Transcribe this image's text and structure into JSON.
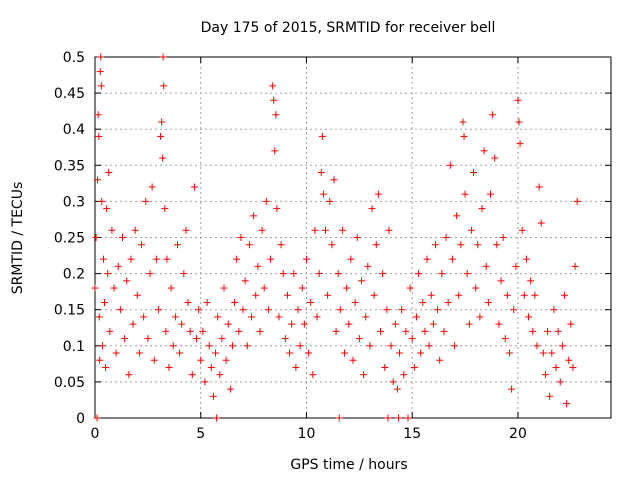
{
  "chart_data": {
    "type": "scatter",
    "title": "Day 175 of 2015, SRMTID for receiver bell",
    "xlabel": "GPS time / hours",
    "ylabel": "SRMTID / TECUs",
    "xlim": [
      0,
      24.4
    ],
    "ylim": [
      0,
      0.5
    ],
    "xticks": [
      0,
      5,
      10,
      15,
      20
    ],
    "xtick_labels": [
      "0",
      "5",
      "10",
      "15",
      "20"
    ],
    "yticks": [
      0,
      0.05,
      0.1,
      0.15,
      0.2,
      0.25,
      0.3,
      0.35,
      0.4,
      0.45,
      0.5
    ],
    "ytick_labels": [
      "0",
      "0.05",
      "0.1",
      "0.15",
      "0.2",
      "0.25",
      "0.3",
      "0.35",
      "0.4",
      "0.45",
      "0.5"
    ],
    "grid": true,
    "marker": "+",
    "color": "#ff0000",
    "series": [
      {
        "name": "SRMTID",
        "points": [
          [
            0.0,
            0.18
          ],
          [
            0.05,
            0.25
          ],
          [
            0.1,
            0.0
          ],
          [
            0.12,
            0.33
          ],
          [
            0.15,
            0.42
          ],
          [
            0.18,
            0.39
          ],
          [
            0.2,
            0.14
          ],
          [
            0.22,
            0.08
          ],
          [
            0.25,
            0.48
          ],
          [
            0.27,
            0.5
          ],
          [
            0.3,
            0.46
          ],
          [
            0.32,
            0.3
          ],
          [
            0.35,
            0.1
          ],
          [
            0.4,
            0.22
          ],
          [
            0.45,
            0.16
          ],
          [
            0.5,
            0.07
          ],
          [
            0.55,
            0.29
          ],
          [
            0.6,
            0.2
          ],
          [
            0.65,
            0.34
          ],
          [
            0.7,
            0.12
          ],
          [
            0.8,
            0.26
          ],
          [
            0.9,
            0.18
          ],
          [
            1.0,
            0.09
          ],
          [
            1.1,
            0.21
          ],
          [
            1.2,
            0.15
          ],
          [
            1.3,
            0.25
          ],
          [
            1.4,
            0.11
          ],
          [
            1.5,
            0.19
          ],
          [
            1.6,
            0.06
          ],
          [
            1.7,
            0.22
          ],
          [
            1.8,
            0.13
          ],
          [
            1.9,
            0.26
          ],
          [
            2.0,
            0.17
          ],
          [
            2.1,
            0.09
          ],
          [
            2.2,
            0.24
          ],
          [
            2.3,
            0.14
          ],
          [
            2.4,
            0.3
          ],
          [
            2.5,
            0.11
          ],
          [
            2.6,
            0.2
          ],
          [
            2.7,
            0.32
          ],
          [
            2.8,
            0.08
          ],
          [
            2.9,
            0.22
          ],
          [
            3.0,
            0.15
          ],
          [
            3.1,
            0.39
          ],
          [
            3.15,
            0.41
          ],
          [
            3.2,
            0.36
          ],
          [
            3.22,
            0.5
          ],
          [
            3.25,
            0.46
          ],
          [
            3.3,
            0.29
          ],
          [
            3.35,
            0.12
          ],
          [
            3.4,
            0.22
          ],
          [
            3.5,
            0.07
          ],
          [
            3.6,
            0.18
          ],
          [
            3.7,
            0.1
          ],
          [
            3.8,
            0.14
          ],
          [
            3.9,
            0.24
          ],
          [
            4.0,
            0.09
          ],
          [
            4.1,
            0.13
          ],
          [
            4.2,
            0.2
          ],
          [
            4.3,
            0.26
          ],
          [
            4.4,
            0.16
          ],
          [
            4.5,
            0.12
          ],
          [
            4.6,
            0.06
          ],
          [
            4.7,
            0.32
          ],
          [
            4.8,
            0.11
          ],
          [
            4.9,
            0.15
          ],
          [
            5.0,
            0.08
          ],
          [
            5.1,
            0.12
          ],
          [
            5.2,
            0.05
          ],
          [
            5.3,
            0.16
          ],
          [
            5.4,
            0.1
          ],
          [
            5.5,
            0.07
          ],
          [
            5.6,
            0.03
          ],
          [
            5.7,
            0.09
          ],
          [
            5.75,
            0.0
          ],
          [
            5.8,
            0.14
          ],
          [
            5.9,
            0.06
          ],
          [
            6.0,
            0.11
          ],
          [
            6.1,
            0.18
          ],
          [
            6.2,
            0.08
          ],
          [
            6.3,
            0.13
          ],
          [
            6.4,
            0.04
          ],
          [
            6.5,
            0.1
          ],
          [
            6.6,
            0.16
          ],
          [
            6.7,
            0.22
          ],
          [
            6.8,
            0.12
          ],
          [
            6.9,
            0.25
          ],
          [
            7.0,
            0.15
          ],
          [
            7.1,
            0.19
          ],
          [
            7.2,
            0.1
          ],
          [
            7.3,
            0.24
          ],
          [
            7.4,
            0.14
          ],
          [
            7.5,
            0.28
          ],
          [
            7.6,
            0.17
          ],
          [
            7.7,
            0.21
          ],
          [
            7.8,
            0.12
          ],
          [
            7.9,
            0.26
          ],
          [
            8.0,
            0.18
          ],
          [
            8.1,
            0.3
          ],
          [
            8.2,
            0.15
          ],
          [
            8.3,
            0.22
          ],
          [
            8.4,
            0.46
          ],
          [
            8.45,
            0.44
          ],
          [
            8.5,
            0.37
          ],
          [
            8.55,
            0.42
          ],
          [
            8.6,
            0.29
          ],
          [
            8.7,
            0.14
          ],
          [
            8.8,
            0.24
          ],
          [
            8.9,
            0.2
          ],
          [
            9.0,
            0.11
          ],
          [
            9.1,
            0.17
          ],
          [
            9.2,
            0.09
          ],
          [
            9.3,
            0.13
          ],
          [
            9.4,
            0.2
          ],
          [
            9.5,
            0.07
          ],
          [
            9.6,
            0.15
          ],
          [
            9.7,
            0.1
          ],
          [
            9.8,
            0.18
          ],
          [
            9.9,
            0.13
          ],
          [
            10.0,
            0.22
          ],
          [
            10.1,
            0.09
          ],
          [
            10.2,
            0.16
          ],
          [
            10.3,
            0.06
          ],
          [
            10.4,
            0.26
          ],
          [
            10.5,
            0.14
          ],
          [
            10.6,
            0.2
          ],
          [
            10.7,
            0.34
          ],
          [
            10.75,
            0.39
          ],
          [
            10.8,
            0.31
          ],
          [
            10.9,
            0.26
          ],
          [
            11.0,
            0.17
          ],
          [
            11.1,
            0.3
          ],
          [
            11.2,
            0.24
          ],
          [
            11.3,
            0.33
          ],
          [
            11.4,
            0.12
          ],
          [
            11.5,
            0.2
          ],
          [
            11.55,
            0.0
          ],
          [
            11.6,
            0.15
          ],
          [
            11.7,
            0.26
          ],
          [
            11.8,
            0.09
          ],
          [
            11.9,
            0.18
          ],
          [
            12.0,
            0.13
          ],
          [
            12.1,
            0.22
          ],
          [
            12.2,
            0.08
          ],
          [
            12.3,
            0.16
          ],
          [
            12.4,
            0.25
          ],
          [
            12.5,
            0.11
          ],
          [
            12.6,
            0.19
          ],
          [
            12.7,
            0.06
          ],
          [
            12.8,
            0.14
          ],
          [
            12.9,
            0.21
          ],
          [
            13.0,
            0.1
          ],
          [
            13.1,
            0.29
          ],
          [
            13.2,
            0.17
          ],
          [
            13.3,
            0.24
          ],
          [
            13.4,
            0.31
          ],
          [
            13.5,
            0.12
          ],
          [
            13.6,
            0.2
          ],
          [
            13.7,
            0.07
          ],
          [
            13.8,
            0.15
          ],
          [
            13.85,
            0.0
          ],
          [
            13.9,
            0.26
          ],
          [
            14.0,
            0.1
          ],
          [
            14.1,
            0.05
          ],
          [
            14.2,
            0.13
          ],
          [
            14.3,
            0.04
          ],
          [
            14.35,
            0.0
          ],
          [
            14.4,
            0.09
          ],
          [
            14.5,
            0.15
          ],
          [
            14.6,
            0.06
          ],
          [
            14.7,
            0.12
          ],
          [
            14.8,
            0.0
          ],
          [
            14.9,
            0.18
          ],
          [
            15.0,
            0.11
          ],
          [
            15.1,
            0.07
          ],
          [
            15.2,
            0.14
          ],
          [
            15.3,
            0.2
          ],
          [
            15.4,
            0.09
          ],
          [
            15.5,
            0.16
          ],
          [
            15.6,
            0.12
          ],
          [
            15.7,
            0.22
          ],
          [
            15.8,
            0.1
          ],
          [
            15.9,
            0.17
          ],
          [
            16.0,
            0.13
          ],
          [
            16.1,
            0.24
          ],
          [
            16.2,
            0.15
          ],
          [
            16.3,
            0.08
          ],
          [
            16.4,
            0.2
          ],
          [
            16.5,
            0.12
          ],
          [
            16.6,
            0.25
          ],
          [
            16.7,
            0.16
          ],
          [
            16.8,
            0.35
          ],
          [
            16.9,
            0.22
          ],
          [
            17.0,
            0.1
          ],
          [
            17.1,
            0.28
          ],
          [
            17.2,
            0.17
          ],
          [
            17.3,
            0.24
          ],
          [
            17.4,
            0.41
          ],
          [
            17.45,
            0.39
          ],
          [
            17.5,
            0.31
          ],
          [
            17.6,
            0.2
          ],
          [
            17.7,
            0.13
          ],
          [
            17.8,
            0.26
          ],
          [
            17.9,
            0.34
          ],
          [
            18.0,
            0.18
          ],
          [
            18.1,
            0.24
          ],
          [
            18.2,
            0.14
          ],
          [
            18.3,
            0.29
          ],
          [
            18.4,
            0.37
          ],
          [
            18.5,
            0.21
          ],
          [
            18.6,
            0.16
          ],
          [
            18.7,
            0.31
          ],
          [
            18.8,
            0.42
          ],
          [
            18.9,
            0.36
          ],
          [
            19.0,
            0.24
          ],
          [
            19.1,
            0.13
          ],
          [
            19.2,
            0.19
          ],
          [
            19.3,
            0.25
          ],
          [
            19.4,
            0.11
          ],
          [
            19.5,
            0.17
          ],
          [
            19.6,
            0.09
          ],
          [
            19.7,
            0.04
          ],
          [
            19.8,
            0.15
          ],
          [
            19.9,
            0.21
          ],
          [
            20.0,
            0.44
          ],
          [
            20.05,
            0.41
          ],
          [
            20.1,
            0.38
          ],
          [
            20.2,
            0.26
          ],
          [
            20.3,
            0.17
          ],
          [
            20.4,
            0.22
          ],
          [
            20.5,
            0.14
          ],
          [
            20.6,
            0.19
          ],
          [
            20.7,
            0.12
          ],
          [
            20.8,
            0.17
          ],
          [
            20.9,
            0.1
          ],
          [
            21.0,
            0.32
          ],
          [
            21.1,
            0.27
          ],
          [
            21.2,
            0.09
          ],
          [
            21.3,
            0.06
          ],
          [
            21.4,
            0.12
          ],
          [
            21.5,
            0.03
          ],
          [
            21.6,
            0.09
          ],
          [
            21.7,
            0.15
          ],
          [
            21.8,
            0.07
          ],
          [
            21.9,
            0.12
          ],
          [
            22.0,
            0.05
          ],
          [
            22.1,
            0.1
          ],
          [
            22.2,
            0.17
          ],
          [
            22.3,
            0.02
          ],
          [
            22.4,
            0.08
          ],
          [
            22.5,
            0.13
          ],
          [
            22.6,
            0.07
          ],
          [
            22.7,
            0.21
          ],
          [
            22.8,
            0.3
          ]
        ]
      }
    ]
  }
}
